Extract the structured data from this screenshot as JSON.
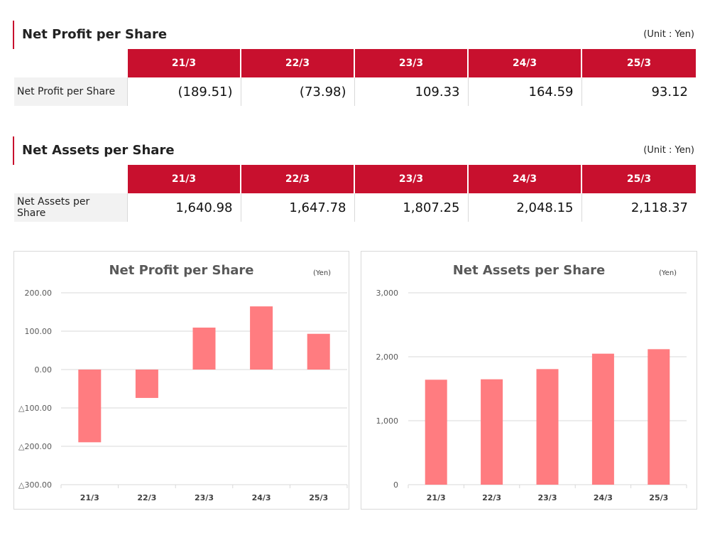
{
  "profit_table": {
    "title": "Net Profit per Share",
    "unit": "(Unit : Yen)",
    "headers": [
      "21/3",
      "22/3",
      "23/3",
      "24/3",
      "25/3"
    ],
    "row_label": "Net Profit per Share",
    "values": [
      "(189.51)",
      "(73.98)",
      "109.33",
      "164.59",
      "93.12"
    ]
  },
  "assets_table": {
    "title": "Net Assets per Share",
    "unit": "(Unit : Yen)",
    "headers": [
      "21/3",
      "22/3",
      "23/3",
      "24/3",
      "25/3"
    ],
    "row_label": "Net Assets per Share",
    "values": [
      "1,640.98",
      "1,647.78",
      "1,807.25",
      "2,048.15",
      "2,118.37"
    ]
  },
  "colors": {
    "accent": "#c8102e",
    "bar": "#ff7c80",
    "grid": "#d9d9d9"
  },
  "chart_data": [
    {
      "type": "bar",
      "title": "Net Profit per Share",
      "unit_label": "(Yen)",
      "categories": [
        "21/3",
        "22/3",
        "23/3",
        "24/3",
        "25/3"
      ],
      "values": [
        -189.51,
        -73.98,
        109.33,
        164.59,
        93.12
      ],
      "ylim": [
        -300,
        200
      ],
      "yticks": [
        200,
        100,
        0,
        -100,
        -200,
        -300
      ],
      "ytick_labels": [
        "200.00",
        "100.00",
        "0.00",
        "△100.00",
        "△200.00",
        "△300.00"
      ],
      "grid": true,
      "xlabel": "",
      "ylabel": ""
    },
    {
      "type": "bar",
      "title": "Net Assets per Share",
      "unit_label": "(Yen)",
      "categories": [
        "21/3",
        "22/3",
        "23/3",
        "24/3",
        "25/3"
      ],
      "values": [
        1640.98,
        1647.78,
        1807.25,
        2048.15,
        2118.37
      ],
      "ylim": [
        0,
        3000
      ],
      "yticks": [
        3000,
        2000,
        1000,
        0
      ],
      "ytick_labels": [
        "3,000",
        "2,000",
        "1,000",
        "0"
      ],
      "grid": true,
      "xlabel": "",
      "ylabel": ""
    }
  ]
}
